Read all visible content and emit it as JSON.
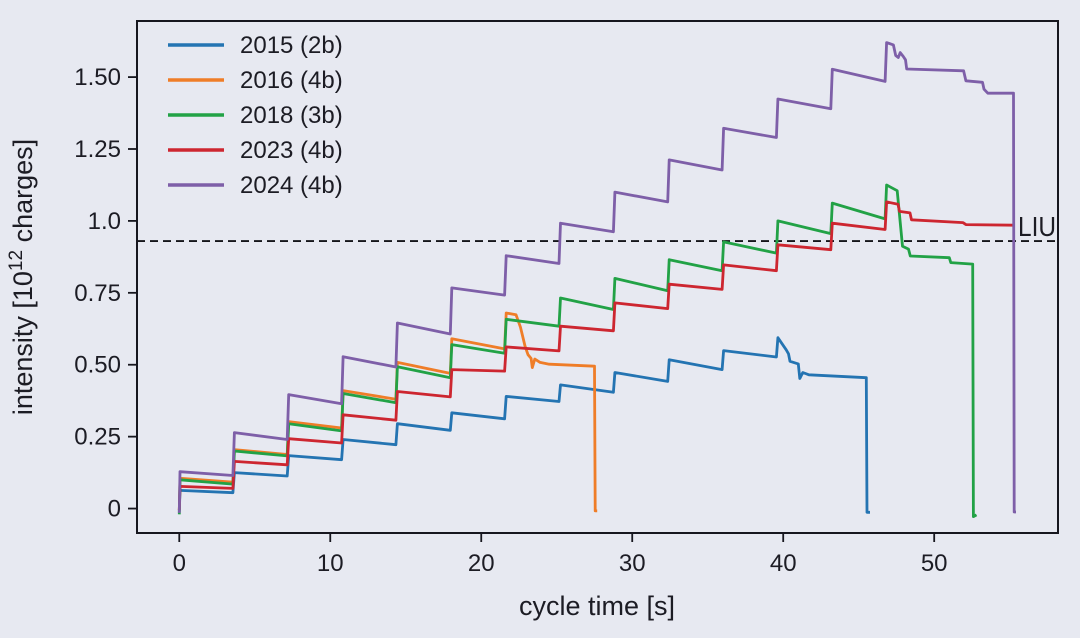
{
  "colors": {
    "background": "#e7e9f1",
    "axes_line": "#17171f",
    "text": "#1c1c24",
    "threshold_line": "#15151a",
    "series_2015": "#2474b2",
    "series_2016": "#ef7d28",
    "series_2018": "#22a246",
    "series_2023": "#cd2630",
    "series_2024": "#7e5fa8"
  },
  "chart_data": {
    "type": "line",
    "title": "",
    "xlabel": "cycle time [s]",
    "ylabel_pre": "intensity [10",
    "ylabel_sup": "12",
    "ylabel_post": " charges]",
    "xlim": [
      -2.8,
      58.2
    ],
    "ylim": [
      -0.085,
      1.695
    ],
    "grid": false,
    "legend_position": "upper left",
    "x_ticks": {
      "values": [
        0,
        10,
        20,
        30,
        40,
        50
      ],
      "labels": [
        "0",
        "10",
        "20",
        "30",
        "40",
        "50"
      ]
    },
    "y_ticks": {
      "values": [
        0,
        0.25,
        0.5,
        0.75,
        1.0,
        1.25,
        1.5
      ],
      "labels": [
        "0",
        "0.25",
        "0.50",
        "0.75",
        "1.0",
        "1.25",
        "1.50"
      ]
    },
    "threshold": {
      "label": "LIU",
      "value": 0.93
    },
    "series": [
      {
        "label": "2015 (2b)",
        "color_key": "series_2015",
        "points": [
          [
            0,
            -0.01
          ],
          [
            0.05,
            0.063
          ],
          [
            3.55,
            0.055
          ],
          [
            3.65,
            0.125
          ],
          [
            7.15,
            0.113
          ],
          [
            7.25,
            0.184
          ],
          [
            10.75,
            0.17
          ],
          [
            10.85,
            0.24
          ],
          [
            14.35,
            0.222
          ],
          [
            14.45,
            0.295
          ],
          [
            17.95,
            0.272
          ],
          [
            18.05,
            0.333
          ],
          [
            21.55,
            0.312
          ],
          [
            21.65,
            0.39
          ],
          [
            25.15,
            0.372
          ],
          [
            25.25,
            0.43
          ],
          [
            28.75,
            0.404
          ],
          [
            28.85,
            0.473
          ],
          [
            32.35,
            0.442
          ],
          [
            32.45,
            0.517
          ],
          [
            35.95,
            0.483
          ],
          [
            36.05,
            0.549
          ],
          [
            39.55,
            0.527
          ],
          [
            39.65,
            0.594
          ],
          [
            40.2,
            0.552
          ],
          [
            40.35,
            0.538
          ],
          [
            40.45,
            0.512
          ],
          [
            41.0,
            0.503
          ],
          [
            41.1,
            0.452
          ],
          [
            41.3,
            0.473
          ],
          [
            41.7,
            0.465
          ],
          [
            45.5,
            0.455
          ],
          [
            45.55,
            -0.013
          ],
          [
            45.75,
            -0.013
          ]
        ]
      },
      {
        "label": "2016 (4b)",
        "color_key": "series_2016",
        "points": [
          [
            0,
            -0.005
          ],
          [
            0.05,
            0.105
          ],
          [
            3.55,
            0.092
          ],
          [
            3.65,
            0.205
          ],
          [
            7.15,
            0.188
          ],
          [
            7.25,
            0.302
          ],
          [
            10.75,
            0.28
          ],
          [
            10.85,
            0.41
          ],
          [
            14.35,
            0.38
          ],
          [
            14.45,
            0.508
          ],
          [
            17.95,
            0.47
          ],
          [
            18.05,
            0.59
          ],
          [
            21.55,
            0.555
          ],
          [
            21.65,
            0.68
          ],
          [
            22.3,
            0.674
          ],
          [
            22.6,
            0.63
          ],
          [
            22.9,
            0.565
          ],
          [
            23.1,
            0.535
          ],
          [
            23.3,
            0.522
          ],
          [
            23.38,
            0.49
          ],
          [
            23.55,
            0.52
          ],
          [
            23.9,
            0.508
          ],
          [
            24.5,
            0.502
          ],
          [
            27.5,
            0.495
          ],
          [
            27.55,
            -0.008
          ],
          [
            27.68,
            -0.008
          ]
        ]
      },
      {
        "label": "2018 (3b)",
        "color_key": "series_2018",
        "points": [
          [
            0,
            -0.02
          ],
          [
            0.05,
            0.1
          ],
          [
            3.55,
            0.085
          ],
          [
            3.65,
            0.2
          ],
          [
            7.15,
            0.183
          ],
          [
            7.25,
            0.295
          ],
          [
            10.75,
            0.27
          ],
          [
            10.85,
            0.4
          ],
          [
            14.35,
            0.368
          ],
          [
            14.45,
            0.493
          ],
          [
            17.95,
            0.455
          ],
          [
            18.05,
            0.57
          ],
          [
            21.55,
            0.54
          ],
          [
            21.65,
            0.658
          ],
          [
            25.15,
            0.634
          ],
          [
            25.25,
            0.732
          ],
          [
            28.75,
            0.692
          ],
          [
            28.85,
            0.8
          ],
          [
            32.35,
            0.757
          ],
          [
            32.45,
            0.865
          ],
          [
            35.95,
            0.827
          ],
          [
            36.05,
            0.927
          ],
          [
            39.55,
            0.888
          ],
          [
            39.65,
            1.0
          ],
          [
            43.15,
            0.956
          ],
          [
            43.25,
            1.062
          ],
          [
            46.75,
            1.007
          ],
          [
            46.85,
            1.125
          ],
          [
            47.55,
            1.105
          ],
          [
            47.9,
            0.912
          ],
          [
            48.3,
            0.902
          ],
          [
            48.42,
            0.878
          ],
          [
            51.0,
            0.872
          ],
          [
            51.1,
            0.855
          ],
          [
            52.55,
            0.85
          ],
          [
            52.6,
            -0.028
          ],
          [
            52.8,
            -0.022
          ]
        ]
      },
      {
        "label": "2023 (4b)",
        "color_key": "series_2023",
        "points": [
          [
            0,
            -0.005
          ],
          [
            0.05,
            0.077
          ],
          [
            3.55,
            0.07
          ],
          [
            3.65,
            0.164
          ],
          [
            7.15,
            0.152
          ],
          [
            7.25,
            0.243
          ],
          [
            10.75,
            0.228
          ],
          [
            10.85,
            0.326
          ],
          [
            14.35,
            0.307
          ],
          [
            14.45,
            0.407
          ],
          [
            17.95,
            0.388
          ],
          [
            18.05,
            0.483
          ],
          [
            21.55,
            0.478
          ],
          [
            21.65,
            0.562
          ],
          [
            25.15,
            0.548
          ],
          [
            25.25,
            0.634
          ],
          [
            28.75,
            0.618
          ],
          [
            28.85,
            0.715
          ],
          [
            32.35,
            0.695
          ],
          [
            32.45,
            0.78
          ],
          [
            35.95,
            0.762
          ],
          [
            36.05,
            0.847
          ],
          [
            39.55,
            0.827
          ],
          [
            39.65,
            0.917
          ],
          [
            43.15,
            0.9
          ],
          [
            43.25,
            0.992
          ],
          [
            46.75,
            0.97
          ],
          [
            46.85,
            1.066
          ],
          [
            47.6,
            1.058
          ],
          [
            47.7,
            1.033
          ],
          [
            48.4,
            1.028
          ],
          [
            48.5,
            1.004
          ],
          [
            51.9,
            0.994
          ],
          [
            52.1,
            0.987
          ],
          [
            55.3,
            0.985
          ]
        ]
      },
      {
        "label": "2024 (4b)",
        "color_key": "series_2024",
        "points": [
          [
            0,
            -0.015
          ],
          [
            0.05,
            0.128
          ],
          [
            3.55,
            0.115
          ],
          [
            3.65,
            0.264
          ],
          [
            7.15,
            0.24
          ],
          [
            7.25,
            0.396
          ],
          [
            10.75,
            0.364
          ],
          [
            10.85,
            0.528
          ],
          [
            14.35,
            0.492
          ],
          [
            14.45,
            0.645
          ],
          [
            17.95,
            0.607
          ],
          [
            18.05,
            0.767
          ],
          [
            21.55,
            0.742
          ],
          [
            21.65,
            0.879
          ],
          [
            25.15,
            0.852
          ],
          [
            25.25,
            0.992
          ],
          [
            28.75,
            0.962
          ],
          [
            28.85,
            1.1
          ],
          [
            32.35,
            1.066
          ],
          [
            32.45,
            1.212
          ],
          [
            35.95,
            1.177
          ],
          [
            36.05,
            1.322
          ],
          [
            39.55,
            1.29
          ],
          [
            39.65,
            1.424
          ],
          [
            43.15,
            1.39
          ],
          [
            43.25,
            1.527
          ],
          [
            46.75,
            1.485
          ],
          [
            46.85,
            1.62
          ],
          [
            47.3,
            1.612
          ],
          [
            47.45,
            1.575
          ],
          [
            47.62,
            1.568
          ],
          [
            47.75,
            1.585
          ],
          [
            47.95,
            1.572
          ],
          [
            48.1,
            1.56
          ],
          [
            48.18,
            1.528
          ],
          [
            51.95,
            1.522
          ],
          [
            52.1,
            1.487
          ],
          [
            53.2,
            1.482
          ],
          [
            53.3,
            1.458
          ],
          [
            53.55,
            1.444
          ],
          [
            55.25,
            1.444
          ],
          [
            55.3,
            -0.012
          ],
          [
            55.42,
            -0.012
          ]
        ]
      }
    ]
  }
}
